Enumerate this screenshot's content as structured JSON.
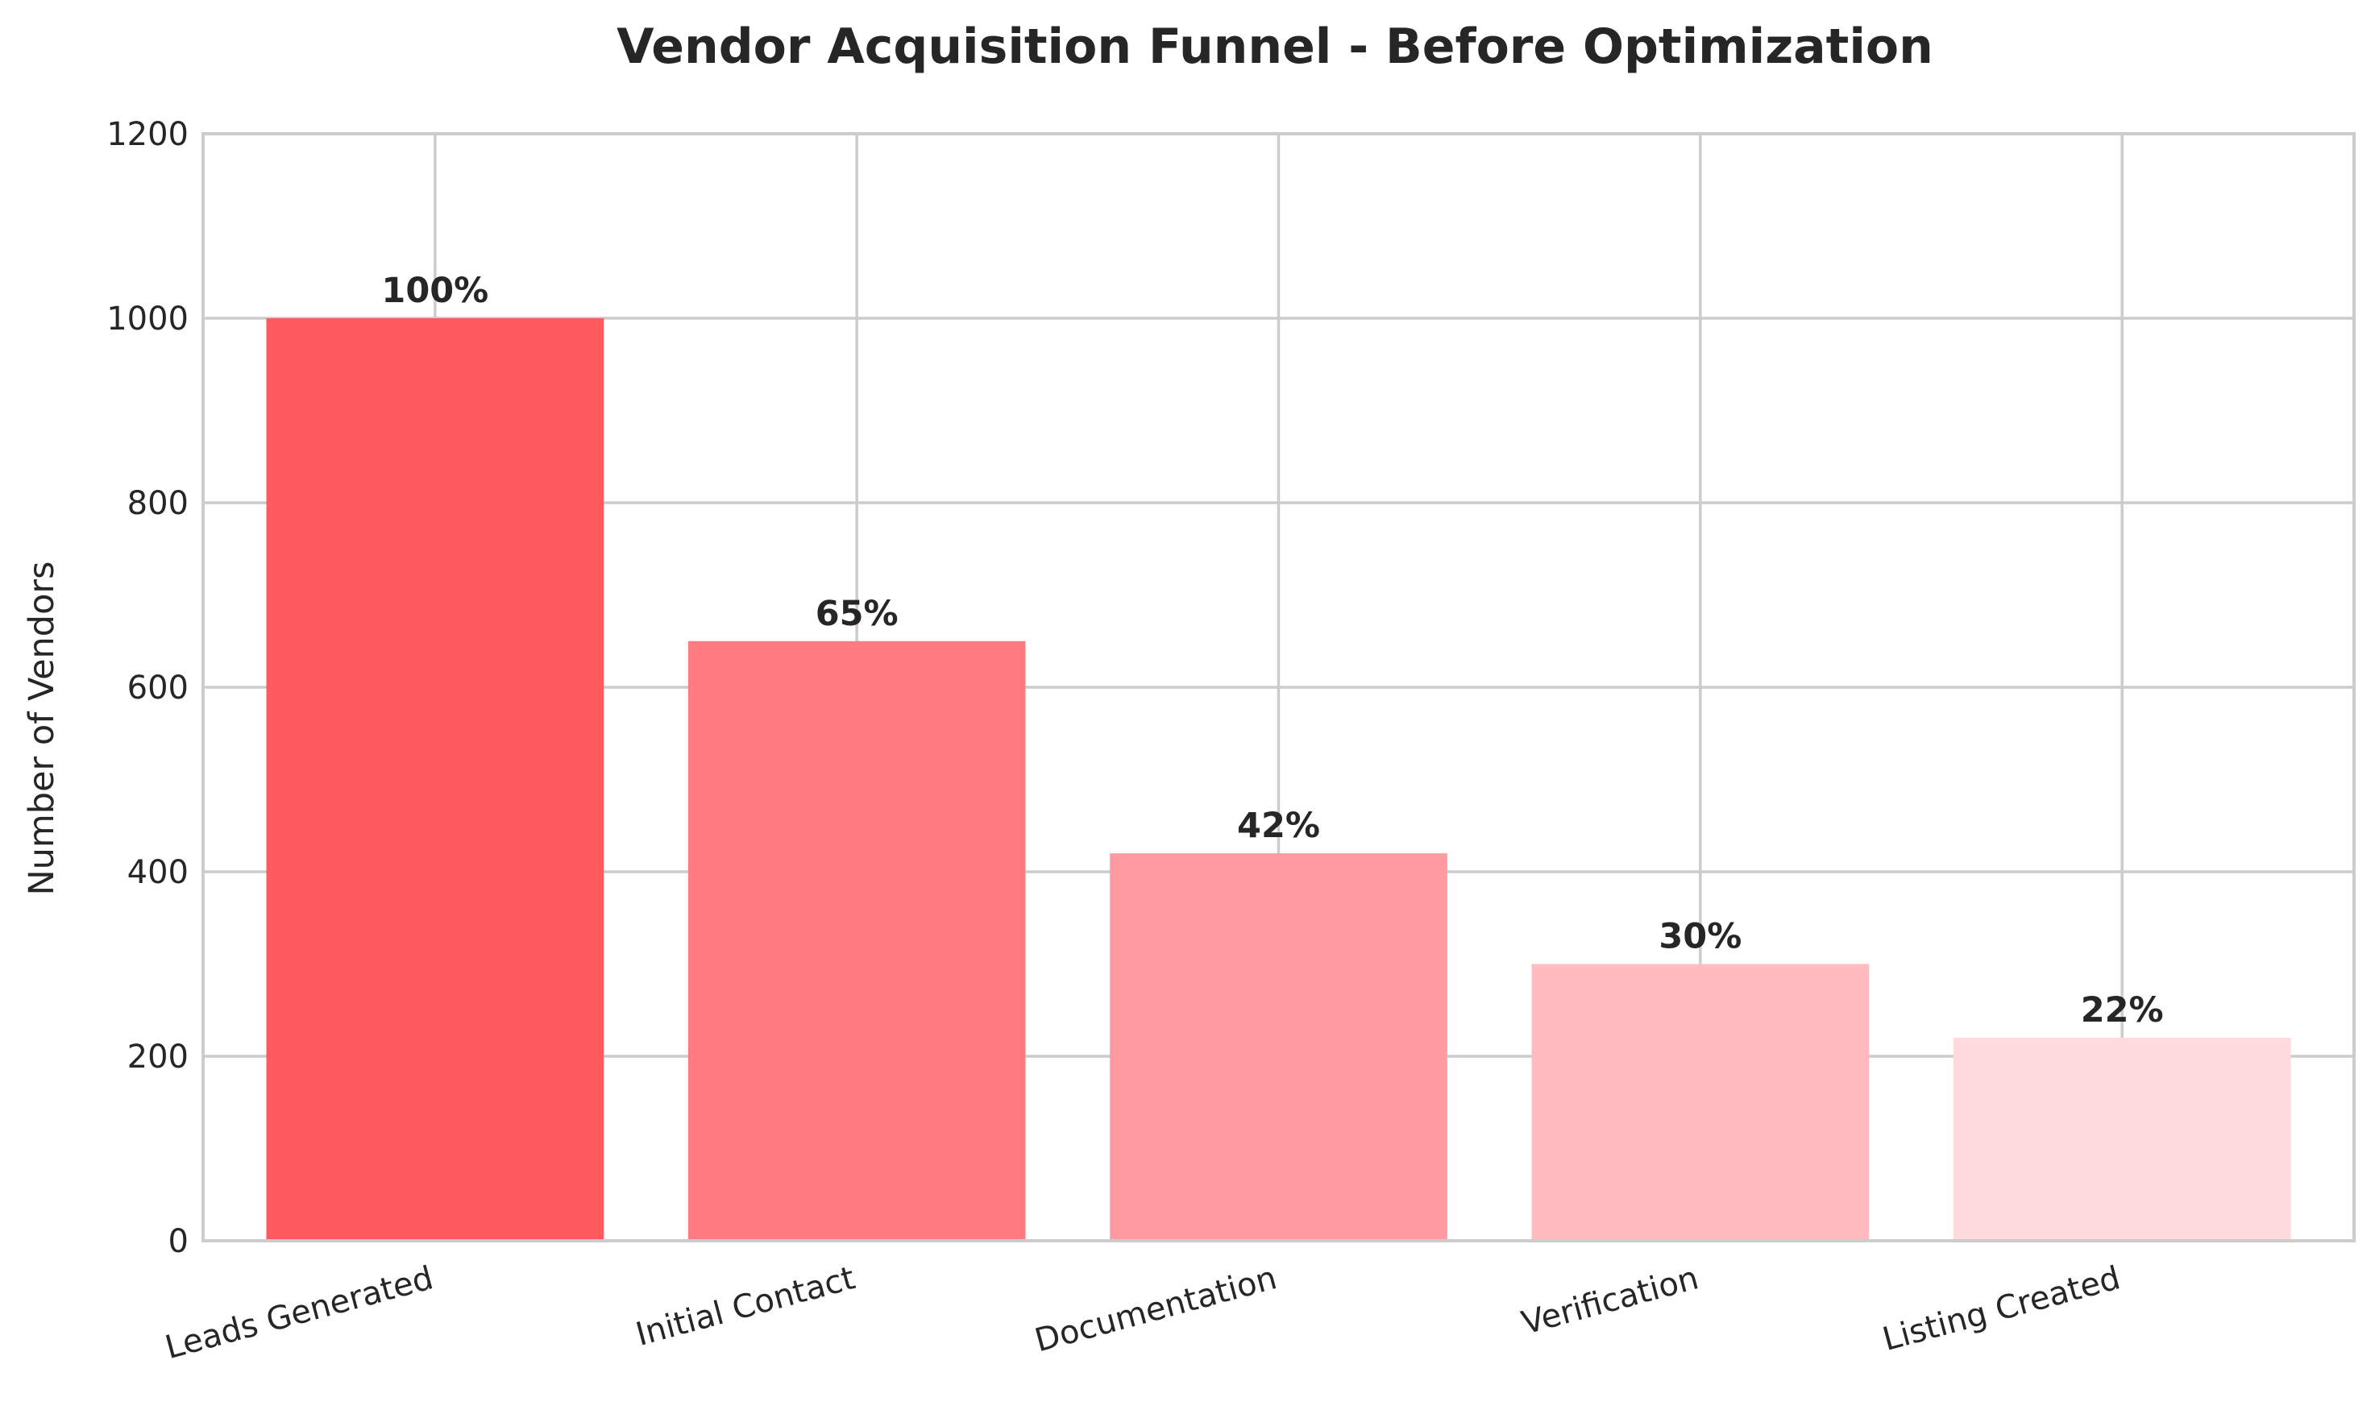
{
  "chart_data": {
    "type": "bar",
    "title": "Vendor Acquisition Funnel - Before Optimization",
    "xlabel": "",
    "ylabel": "Number of Vendors",
    "categories": [
      "Leads Generated",
      "Initial Contact",
      "Documentation",
      "Verification",
      "Listing Created"
    ],
    "values": [
      1000,
      650,
      420,
      300,
      220
    ],
    "data_labels": [
      "100%",
      "65%",
      "42%",
      "30%",
      "22%"
    ],
    "colors": [
      "#ff5a5f",
      "#ff7b80",
      "#ff9aa0",
      "#ffbbbf",
      "#ffdadd"
    ],
    "ylim": [
      0,
      1200
    ],
    "yticks": [
      "0",
      "200",
      "400",
      "600",
      "800",
      "1000",
      "1200"
    ],
    "grid": true,
    "legend": "none"
  }
}
